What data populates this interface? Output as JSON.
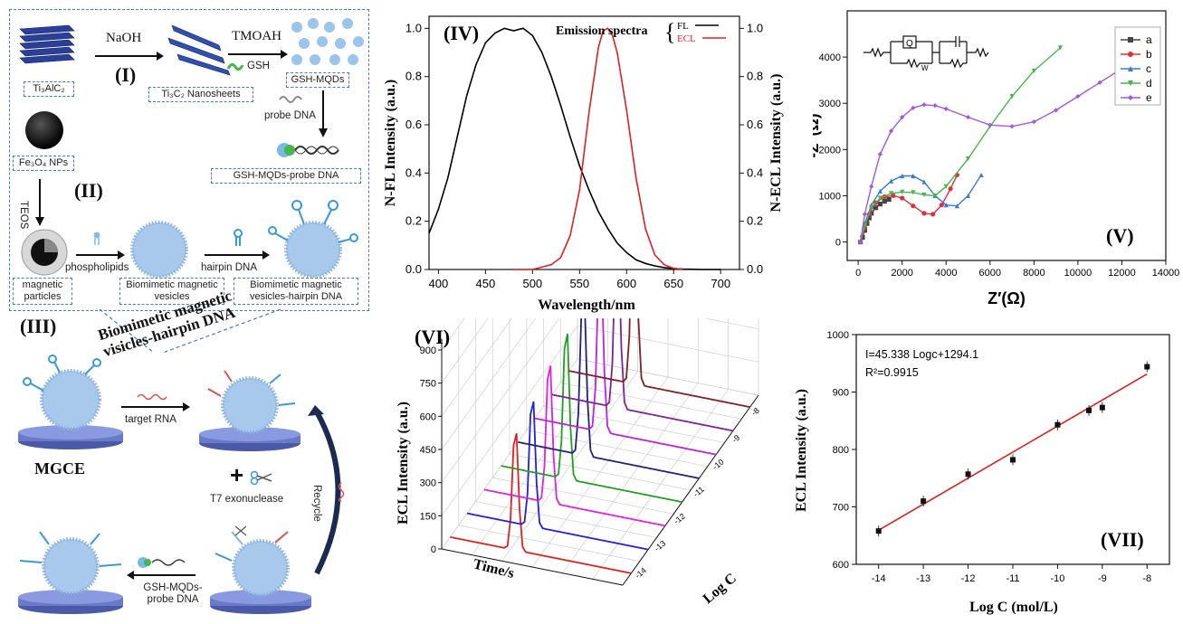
{
  "schematic": {
    "label_I": "(I)",
    "label_II": "(II)",
    "label_III": "(III)",
    "naoh": "NaOH",
    "tmoah": "TMOAH",
    "gsh": "GSH",
    "ti3alc2": "Ti₃AlC₂",
    "nanosheets": "Ti₃C₂ Nanosheets",
    "gsh_mqds": "GSH-MQDs",
    "probe_dna": "probe DNA",
    "gsh_mqds_probe": "GSH-MQDs-probe DNA",
    "fe3o4": "Fe₃O₄ NPs",
    "teos": "TEOS",
    "phospholipids": "phospholipids",
    "hairpin": "hairpin DNA",
    "magnetic_particles": "magnetic particles",
    "bio_vesicles": "Biomimetic magnetic vesicles",
    "bio_vesicles_hairpin": "Biomimetic magnetic vesicles-hairpin DNA",
    "bio_vesicles_hairpin_italic": "Biomimetic magnetic visicles-hairpin DNA",
    "target_rna": "target RNA",
    "mgce": "MGCE",
    "plus": "+",
    "t7": "T7 exonuclease",
    "recycle": "Recycle",
    "gsh_probe_label": "GSH-MQDs-probe DNA"
  },
  "panel_IV": {
    "label": "(IV)",
    "legend_title": "Emission spectra",
    "legend_fl": "FL",
    "legend_ecl": "ECL",
    "xlabel": "Wavelength/nm",
    "ylabel_left": "N-FL Intensity (a.u.)",
    "ylabel_right": "N-ECL Intensity (a.u.)",
    "xticks": [
      "400",
      "450",
      "500",
      "550",
      "600",
      "650",
      "700"
    ],
    "yticks_left": [
      "0.0",
      "0.2",
      "0.4",
      "0.6",
      "0.8",
      "1.0"
    ],
    "yticks_right": [
      "0.0",
      "0.2",
      "0.4",
      "0.6",
      "0.8",
      "1.0"
    ]
  },
  "panel_V": {
    "label": "(V)",
    "xlabel": "Z′(Ω)",
    "ylabel": "-Z″(Ω)",
    "xticks": [
      "0",
      "2000",
      "4000",
      "6000",
      "8000",
      "10000",
      "12000",
      "14000"
    ],
    "yticks": [
      "0",
      "1000",
      "2000",
      "3000",
      "4000"
    ],
    "circuit_q": "Q",
    "circuit_w": "W",
    "legend": [
      "a",
      "b",
      "c",
      "d",
      "e"
    ]
  },
  "panel_VI": {
    "label": "(VI)",
    "ylabel": "ECL Intensity (a.u.)",
    "xlabel": "Time/s",
    "zlabel": "Log C",
    "yticks": [
      "0",
      "150",
      "300",
      "450",
      "600",
      "750",
      "900"
    ],
    "zticks": [
      "-14",
      "-13",
      "-12",
      "-11",
      "-10",
      "-9",
      "-8"
    ]
  },
  "panel_VII": {
    "label": "(VII)",
    "equation": "I=45.338 Logc+1294.1",
    "r2": "R²=0.9915",
    "xlabel": "Log C (mol/L)",
    "ylabel": "ECL Intensity (a.u.)",
    "xticks": [
      "-14",
      "-13",
      "-12",
      "-11",
      "-10",
      "-9",
      "-8"
    ],
    "yticks": [
      "600",
      "700",
      "800",
      "900",
      "1000"
    ]
  },
  "colors": {
    "fl": "#000000",
    "ecl": "#e02020",
    "a": "#444444",
    "b": "#e0303a",
    "c": "#3a78d8",
    "d": "#44b84a",
    "e": "#a05ae0",
    "fit": "#e02020",
    "box_border": "#4a7ab5",
    "vesicle": "#a8c8ec"
  },
  "chart_data": [
    {
      "type": "line",
      "panel": "IV",
      "xlabel": "Wavelength/nm",
      "ylabel": "N-FL Intensity (a.u.)",
      "xlim": [
        390,
        720
      ],
      "ylim": [
        0,
        1.05
      ],
      "series": [
        {
          "name": "FL",
          "x": [
            390,
            400,
            410,
            420,
            430,
            440,
            450,
            460,
            470,
            480,
            490,
            500,
            510,
            520,
            530,
            540,
            550,
            560,
            570,
            580,
            590,
            600,
            610,
            620,
            630,
            640,
            650,
            660,
            680,
            700
          ],
          "values": [
            0.15,
            0.25,
            0.38,
            0.55,
            0.72,
            0.85,
            0.94,
            0.98,
            1.0,
            0.99,
            1.0,
            0.97,
            0.9,
            0.8,
            0.68,
            0.55,
            0.43,
            0.33,
            0.24,
            0.17,
            0.11,
            0.07,
            0.04,
            0.025,
            0.015,
            0.008,
            0.004,
            0.002,
            0.0,
            0.0
          ]
        },
        {
          "name": "ECL",
          "x": [
            480,
            500,
            520,
            530,
            540,
            550,
            560,
            570,
            575,
            580,
            585,
            590,
            600,
            610,
            620,
            630,
            640,
            650,
            660
          ],
          "values": [
            0.0,
            0.0,
            0.02,
            0.05,
            0.14,
            0.33,
            0.65,
            0.92,
            0.99,
            1.0,
            0.97,
            0.9,
            0.66,
            0.38,
            0.17,
            0.06,
            0.02,
            0.005,
            0.0
          ]
        }
      ]
    },
    {
      "type": "scatter",
      "panel": "V",
      "xlabel": "Z′(Ω)",
      "ylabel": "-Z″(Ω)",
      "xlim": [
        -500,
        14000
      ],
      "ylim": [
        -400,
        5000
      ],
      "series": [
        {
          "name": "a",
          "x": [
            100,
            200,
            300,
            400,
            500,
            600,
            800,
            1000,
            1200,
            1400
          ],
          "values": [
            0,
            100,
            250,
            400,
            520,
            620,
            740,
            820,
            880,
            920
          ]
        },
        {
          "name": "b",
          "x": [
            100,
            300,
            500,
            800,
            1200,
            1600,
            2000,
            2500,
            3000,
            3400,
            3800,
            4200,
            4500
          ],
          "values": [
            0,
            300,
            600,
            850,
            980,
            1000,
            950,
            780,
            620,
            600,
            800,
            1150,
            1450
          ]
        },
        {
          "name": "c",
          "x": [
            100,
            300,
            600,
            1000,
            1500,
            2000,
            2500,
            3000,
            3500,
            4000,
            4500,
            5000,
            5600
          ],
          "values": [
            0,
            400,
            800,
            1100,
            1320,
            1430,
            1430,
            1300,
            1000,
            800,
            780,
            1000,
            1450
          ]
        },
        {
          "name": "d",
          "x": [
            100,
            300,
            600,
            1000,
            1500,
            2000,
            2500,
            3000,
            3500,
            4000,
            5000,
            6000,
            7000,
            8000,
            9200
          ],
          "values": [
            0,
            350,
            750,
            950,
            1050,
            1080,
            1070,
            1020,
            1000,
            1200,
            1800,
            2500,
            3150,
            3700,
            4200
          ]
        },
        {
          "name": "e",
          "x": [
            100,
            300,
            600,
            1000,
            1500,
            2000,
            2500,
            3000,
            3500,
            4000,
            5000,
            6000,
            7000,
            8000,
            9000,
            10000,
            11000,
            12000,
            12800
          ],
          "values": [
            0,
            600,
            1200,
            1900,
            2400,
            2700,
            2900,
            2970,
            2950,
            2880,
            2700,
            2530,
            2500,
            2600,
            2850,
            3150,
            3450,
            3750,
            4000
          ]
        }
      ]
    },
    {
      "type": "line",
      "panel": "VI",
      "xlabel": "Time/s",
      "ylabel": "ECL Intensity (a.u.)",
      "zlabel": "Log C",
      "ylim": [
        0,
        900
      ],
      "series": [
        {
          "name": "-14",
          "peak": 580,
          "color": "#e02020"
        },
        {
          "name": "-13",
          "peak": 620,
          "color": "#2020e0"
        },
        {
          "name": "-12",
          "peak": 680,
          "color": "#e020e0"
        },
        {
          "name": "-11",
          "peak": 720,
          "color": "#20a020"
        },
        {
          "name": "-10",
          "peak": 800,
          "color": "#202080"
        },
        {
          "name": "-9.3",
          "peak": 820,
          "color": "#c020e0"
        },
        {
          "name": "-9",
          "peak": 840,
          "color": "#8020a0"
        },
        {
          "name": "-8",
          "peak": 920,
          "color": "#802020"
        }
      ]
    },
    {
      "type": "scatter",
      "panel": "VII",
      "xlabel": "Log C (mol/L)",
      "ylabel": "ECL Intensity (a.u.)",
      "xlim": [
        -14.5,
        -7.5
      ],
      "ylim": [
        600,
        1000
      ],
      "x": [
        -14,
        -13,
        -12,
        -11,
        -10,
        -9.3,
        -9,
        -8
      ],
      "values": [
        658,
        710,
        757,
        782,
        843,
        868,
        873,
        944
      ],
      "fit": {
        "slope": 45.338,
        "intercept": 1294.1
      }
    }
  ]
}
